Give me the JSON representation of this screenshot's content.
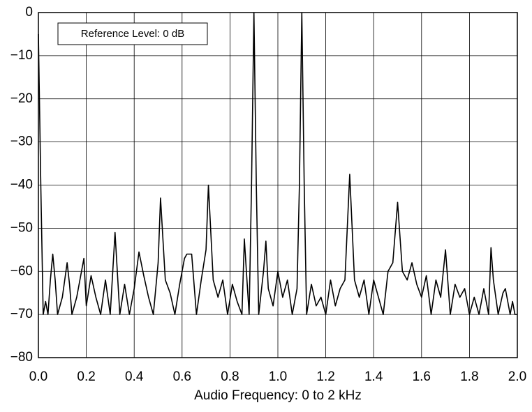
{
  "chart_data": {
    "type": "line",
    "xlabel": "Audio Frequency: 0 to 2 kHz",
    "annotation": "Reference Level: 0 dB",
    "color": "#000000",
    "grid": true,
    "xlim": [
      0,
      2
    ],
    "ylim": [
      -80,
      0
    ],
    "xticks": [
      {
        "value": 0,
        "label": "0.0"
      },
      0.2,
      0.4,
      0.6,
      0.8,
      {
        "value": 1,
        "label": "1.0"
      },
      1.2,
      1.4,
      1.6,
      1.8,
      {
        "value": 2,
        "label": "2.0"
      }
    ],
    "yticks": [
      0,
      {
        "value": -10,
        "label": "−10"
      },
      {
        "value": -20,
        "label": "−20"
      },
      {
        "value": -30,
        "label": "−30"
      },
      {
        "value": -40,
        "label": "−40"
      },
      {
        "value": -50,
        "label": "−50"
      },
      {
        "value": -60,
        "label": "−60"
      },
      {
        "value": -70,
        "label": "−70"
      },
      {
        "value": -80,
        "label": "−80"
      }
    ],
    "x": [
      0.0,
      0.01,
      0.02,
      0.03,
      0.04,
      0.05,
      0.06,
      0.07,
      0.08,
      0.1,
      0.12,
      0.13,
      0.14,
      0.16,
      0.18,
      0.19,
      0.2,
      0.22,
      0.24,
      0.26,
      0.28,
      0.3,
      0.32,
      0.34,
      0.36,
      0.38,
      0.4,
      0.42,
      0.44,
      0.46,
      0.48,
      0.5,
      0.51,
      0.53,
      0.55,
      0.57,
      0.59,
      0.61,
      0.62,
      0.64,
      0.66,
      0.68,
      0.7,
      0.71,
      0.73,
      0.75,
      0.77,
      0.79,
      0.81,
      0.83,
      0.85,
      0.86,
      0.88,
      0.89,
      0.9,
      0.91,
      0.92,
      0.94,
      0.95,
      0.96,
      0.98,
      1.0,
      1.02,
      1.04,
      1.06,
      1.08,
      1.09,
      1.1,
      1.11,
      1.12,
      1.14,
      1.16,
      1.18,
      1.2,
      1.22,
      1.24,
      1.26,
      1.28,
      1.3,
      1.32,
      1.34,
      1.36,
      1.38,
      1.4,
      1.42,
      1.44,
      1.46,
      1.48,
      1.5,
      1.52,
      1.54,
      1.56,
      1.58,
      1.6,
      1.62,
      1.64,
      1.66,
      1.68,
      1.7,
      1.72,
      1.74,
      1.76,
      1.78,
      1.8,
      1.82,
      1.84,
      1.86,
      1.88,
      1.89,
      1.9,
      1.92,
      1.94,
      1.95,
      1.97,
      1.98,
      1.99,
      2.0
    ],
    "values": [
      -5,
      -40,
      -70,
      -67,
      -70,
      -62,
      -56,
      -62,
      -70,
      -66,
      -58,
      -63,
      -70,
      -66,
      -60,
      -57,
      -68,
      -61,
      -66,
      -70,
      -62,
      -70,
      -51,
      -70,
      -63,
      -70,
      -64,
      -55.5,
      -61,
      -66,
      -70,
      -58,
      -43,
      -62,
      -65,
      -70,
      -63,
      -57,
      -56,
      -56,
      -70,
      -62,
      -55,
      -40,
      -62,
      -66,
      -62,
      -70,
      -63,
      -67,
      -70,
      -52.5,
      -70,
      -40,
      0,
      -40,
      -70,
      -60,
      -53,
      -64,
      -68,
      -60,
      -66,
      -62,
      -70,
      -64,
      -40,
      0,
      -40,
      -70,
      -63,
      -68,
      -66,
      -70,
      -62,
      -68,
      -64,
      -62,
      -37.5,
      -62,
      -66,
      -62,
      -70,
      -62,
      -66,
      -70,
      -60,
      -58,
      -44,
      -60,
      -62,
      -58,
      -63,
      -66,
      -61,
      -70,
      -62,
      -66,
      -55,
      -70,
      -63,
      -66,
      -64,
      -70,
      -66,
      -70,
      -64,
      -70,
      -54.5,
      -62,
      -70,
      -65,
      -64,
      -70,
      -67,
      -70,
      -70
    ]
  }
}
